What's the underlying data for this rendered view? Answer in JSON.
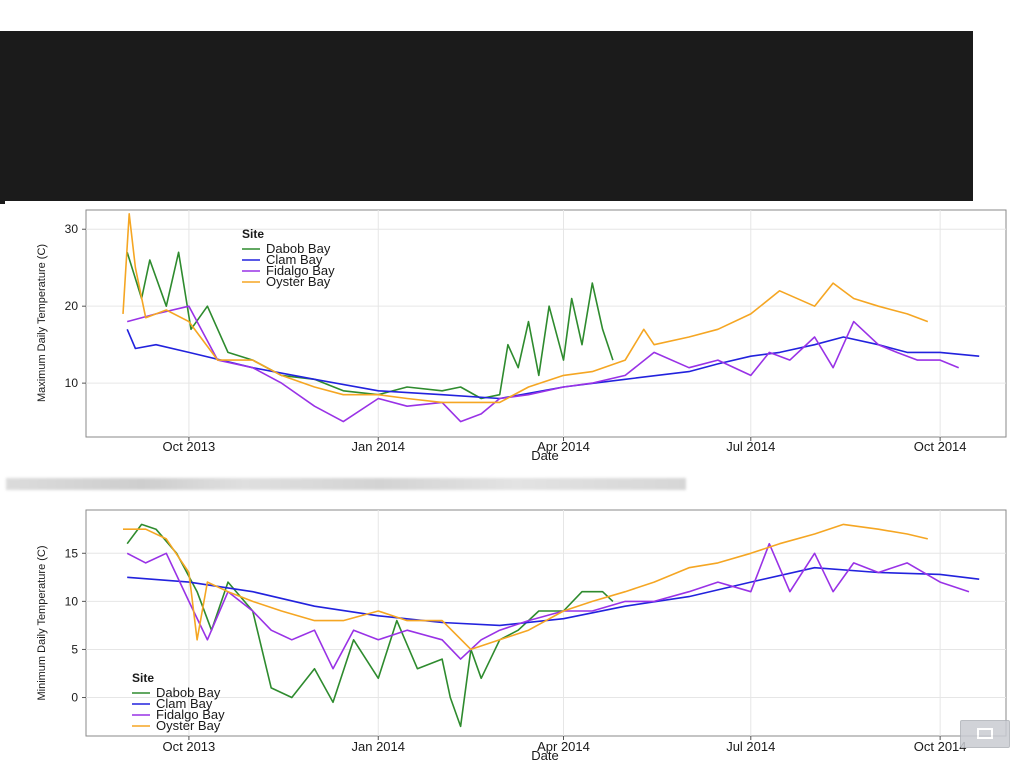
{
  "chart_data": [
    {
      "type": "line",
      "xlabel": "Date",
      "ylabel": "Maximum Daily Temperature (C)",
      "x_ticks": [
        "Oct 2013",
        "Jan 2014",
        "Apr 2014",
        "Jul 2014",
        "Oct 2014"
      ],
      "xlim": [
        "2013-08-12",
        "2014-11-02"
      ],
      "ylim": [
        3,
        32.5
      ],
      "y_ticks": [
        10,
        20,
        30
      ],
      "grid": true,
      "legend_title": "Site",
      "legend_position": "top-left",
      "series": [
        {
          "name": "Dabob Bay",
          "color": "#2e8b2e",
          "x": [
            "2013-09-01",
            "2013-09-08",
            "2013-09-12",
            "2013-09-20",
            "2013-09-26",
            "2013-10-02",
            "2013-10-10",
            "2013-10-20",
            "2013-11-01",
            "2013-11-15",
            "2013-12-01",
            "2013-12-15",
            "2014-01-01",
            "2014-01-15",
            "2014-02-01",
            "2014-02-10",
            "2014-02-20",
            "2014-03-01",
            "2014-03-05",
            "2014-03-10",
            "2014-03-15",
            "2014-03-20",
            "2014-03-25",
            "2014-04-01",
            "2014-04-05",
            "2014-04-10",
            "2014-04-15",
            "2014-04-20",
            "2014-04-25"
          ],
          "values": [
            27,
            21,
            26,
            20,
            27,
            17,
            20,
            14,
            13,
            11,
            10.5,
            9,
            8.5,
            9.5,
            9,
            9.5,
            8,
            8.5,
            15,
            12,
            18,
            11,
            20,
            13,
            21,
            15,
            23,
            17,
            13
          ]
        },
        {
          "name": "Clam Bay",
          "color": "#2222dd",
          "x": [
            "2013-09-01",
            "2013-09-05",
            "2013-09-15",
            "2013-10-01",
            "2013-11-01",
            "2013-12-01",
            "2014-01-01",
            "2014-02-01",
            "2014-03-01",
            "2014-04-01",
            "2014-05-01",
            "2014-06-01",
            "2014-06-15",
            "2014-07-01",
            "2014-07-15",
            "2014-08-01",
            "2014-08-15",
            "2014-09-01",
            "2014-09-15",
            "2014-10-01",
            "2014-10-20"
          ],
          "values": [
            17,
            14.5,
            15,
            14,
            12,
            10.5,
            9,
            8.5,
            8,
            9.5,
            10.5,
            11.5,
            12.5,
            13.5,
            14,
            15,
            16,
            15,
            14,
            14,
            13.5
          ]
        },
        {
          "name": "Fidalgo Bay",
          "color": "#9932e6",
          "x": [
            "2013-09-01",
            "2013-09-15",
            "2013-10-01",
            "2013-10-15",
            "2013-11-01",
            "2013-11-15",
            "2013-12-01",
            "2013-12-15",
            "2014-01-01",
            "2014-01-15",
            "2014-02-01",
            "2014-02-10",
            "2014-02-20",
            "2014-03-01",
            "2014-03-15",
            "2014-04-01",
            "2014-04-15",
            "2014-05-01",
            "2014-05-15",
            "2014-06-01",
            "2014-06-15",
            "2014-07-01",
            "2014-07-10",
            "2014-07-20",
            "2014-08-01",
            "2014-08-10",
            "2014-08-20",
            "2014-09-01",
            "2014-09-10",
            "2014-09-20",
            "2014-10-01",
            "2014-10-10"
          ],
          "values": [
            18,
            19,
            20,
            13,
            12,
            10,
            7,
            5,
            8,
            7,
            7.5,
            5,
            6,
            8,
            8.5,
            9.5,
            10,
            11,
            14,
            12,
            13,
            11,
            14,
            13,
            16,
            12,
            18,
            15,
            14,
            13,
            13,
            12
          ]
        },
        {
          "name": "Oyster Bay",
          "color": "#f5a623",
          "x": [
            "2013-08-30",
            "2013-09-02",
            "2013-09-05",
            "2013-09-10",
            "2013-09-20",
            "2013-10-01",
            "2013-10-15",
            "2013-11-01",
            "2013-11-15",
            "2013-12-01",
            "2013-12-15",
            "2014-01-01",
            "2014-01-15",
            "2014-02-01",
            "2014-02-15",
            "2014-03-01",
            "2014-03-15",
            "2014-04-01",
            "2014-04-15",
            "2014-05-01",
            "2014-05-10",
            "2014-05-15",
            "2014-06-01",
            "2014-06-15",
            "2014-07-01",
            "2014-07-15",
            "2014-08-01",
            "2014-08-10",
            "2014-08-20",
            "2014-09-01",
            "2014-09-15",
            "2014-09-25"
          ],
          "values": [
            19,
            32,
            25,
            18.5,
            19.5,
            18,
            13,
            13,
            11,
            9.5,
            8.5,
            8.5,
            8,
            7.5,
            7.5,
            7.5,
            9.5,
            11,
            11.5,
            13,
            17,
            15,
            16,
            17,
            19,
            22,
            20,
            23,
            21,
            20,
            19,
            18
          ]
        }
      ]
    },
    {
      "type": "line",
      "xlabel": "Date",
      "ylabel": "Minimum Daily Temperature (C)",
      "x_ticks": [
        "Oct 2013",
        "Jan 2014",
        "Apr 2014",
        "Jul 2014",
        "Oct 2014"
      ],
      "xlim": [
        "2013-08-12",
        "2014-11-02"
      ],
      "ylim": [
        -4,
        19.5
      ],
      "y_ticks": [
        0,
        5,
        10,
        15
      ],
      "grid": true,
      "legend_title": "Site",
      "legend_position": "bottom-left",
      "series": [
        {
          "name": "Dabob Bay",
          "color": "#2e8b2e",
          "x": [
            "2013-09-01",
            "2013-09-08",
            "2013-09-15",
            "2013-09-25",
            "2013-10-05",
            "2013-10-12",
            "2013-10-20",
            "2013-11-01",
            "2013-11-10",
            "2013-11-20",
            "2013-12-01",
            "2013-12-10",
            "2013-12-20",
            "2014-01-01",
            "2014-01-10",
            "2014-01-20",
            "2014-02-01",
            "2014-02-05",
            "2014-02-10",
            "2014-02-15",
            "2014-02-20",
            "2014-03-01",
            "2014-03-10",
            "2014-03-20",
            "2014-04-01",
            "2014-04-10",
            "2014-04-20",
            "2014-04-25"
          ],
          "values": [
            16,
            18,
            17.5,
            15,
            11,
            7,
            12,
            9,
            1,
            0,
            3,
            -0.5,
            6,
            2,
            8,
            3,
            4,
            0,
            -3,
            5,
            2,
            6,
            7,
            9,
            9,
            11,
            11,
            10
          ]
        },
        {
          "name": "Clam Bay",
          "color": "#2222dd",
          "x": [
            "2013-09-01",
            "2013-10-01",
            "2013-11-01",
            "2013-12-01",
            "2014-01-01",
            "2014-02-01",
            "2014-03-01",
            "2014-04-01",
            "2014-05-01",
            "2014-06-01",
            "2014-07-01",
            "2014-08-01",
            "2014-09-01",
            "2014-10-01",
            "2014-10-20"
          ],
          "values": [
            12.5,
            12,
            11,
            9.5,
            8.5,
            7.8,
            7.5,
            8.2,
            9.5,
            10.5,
            12,
            13.5,
            13,
            12.8,
            12.3
          ]
        },
        {
          "name": "Fidalgo Bay",
          "color": "#9932e6",
          "x": [
            "2013-09-01",
            "2013-09-10",
            "2013-09-20",
            "2013-10-01",
            "2013-10-10",
            "2013-10-20",
            "2013-11-01",
            "2013-11-10",
            "2013-11-20",
            "2013-12-01",
            "2013-12-10",
            "2013-12-20",
            "2014-01-01",
            "2014-01-15",
            "2014-02-01",
            "2014-02-10",
            "2014-02-20",
            "2014-03-01",
            "2014-03-15",
            "2014-04-01",
            "2014-04-15",
            "2014-05-01",
            "2014-05-15",
            "2014-06-01",
            "2014-06-15",
            "2014-07-01",
            "2014-07-10",
            "2014-07-20",
            "2014-08-01",
            "2014-08-10",
            "2014-08-20",
            "2014-09-01",
            "2014-09-15",
            "2014-10-01",
            "2014-10-15"
          ],
          "values": [
            15,
            14,
            15,
            10,
            6,
            11,
            9,
            7,
            6,
            7,
            3,
            7,
            6,
            7,
            6,
            4,
            6,
            7,
            8,
            9,
            9,
            10,
            10,
            11,
            12,
            11,
            16,
            11,
            15,
            11,
            14,
            13,
            14,
            12,
            11
          ]
        },
        {
          "name": "Oyster Bay",
          "color": "#f5a623",
          "x": [
            "2013-08-30",
            "2013-09-10",
            "2013-09-20",
            "2013-10-01",
            "2013-10-05",
            "2013-10-10",
            "2013-10-20",
            "2013-11-01",
            "2013-11-15",
            "2013-12-01",
            "2013-12-15",
            "2014-01-01",
            "2014-01-15",
            "2014-02-01",
            "2014-02-15",
            "2014-03-01",
            "2014-03-15",
            "2014-04-01",
            "2014-04-15",
            "2014-05-01",
            "2014-05-15",
            "2014-06-01",
            "2014-06-15",
            "2014-07-01",
            "2014-07-15",
            "2014-08-01",
            "2014-08-15",
            "2014-09-01",
            "2014-09-15",
            "2014-09-25"
          ],
          "values": [
            17.5,
            17.5,
            16.5,
            13,
            6,
            12,
            11,
            10,
            9,
            8,
            8,
            9,
            8,
            8,
            5,
            6,
            7,
            9,
            10,
            11,
            12,
            13.5,
            14,
            15,
            16,
            17,
            18,
            17.5,
            17,
            16.5
          ]
        }
      ]
    }
  ]
}
